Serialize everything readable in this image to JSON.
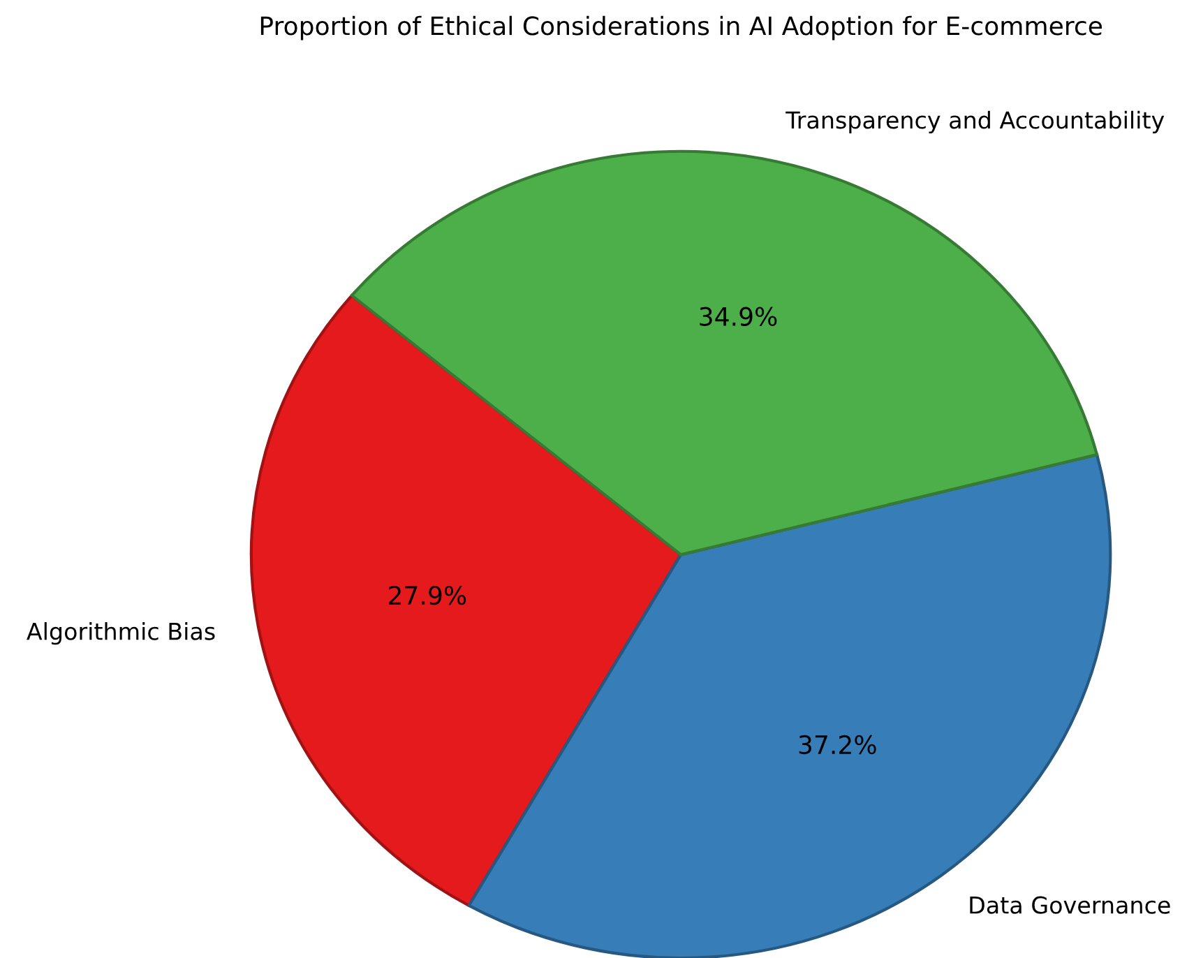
{
  "chart_data": {
    "type": "pie",
    "title": "Proportion of Ethical Considerations in AI Adoption for E-commerce",
    "categories": [
      "Algorithmic Bias",
      "Data Governance",
      "Transparency and Accountability"
    ],
    "values": [
      27.9,
      37.2,
      34.9
    ],
    "colors": [
      "#e41a1c",
      "#377eb8",
      "#4daf4a"
    ],
    "value_labels": [
      "27.9%",
      "37.2%",
      "34.9%"
    ]
  }
}
